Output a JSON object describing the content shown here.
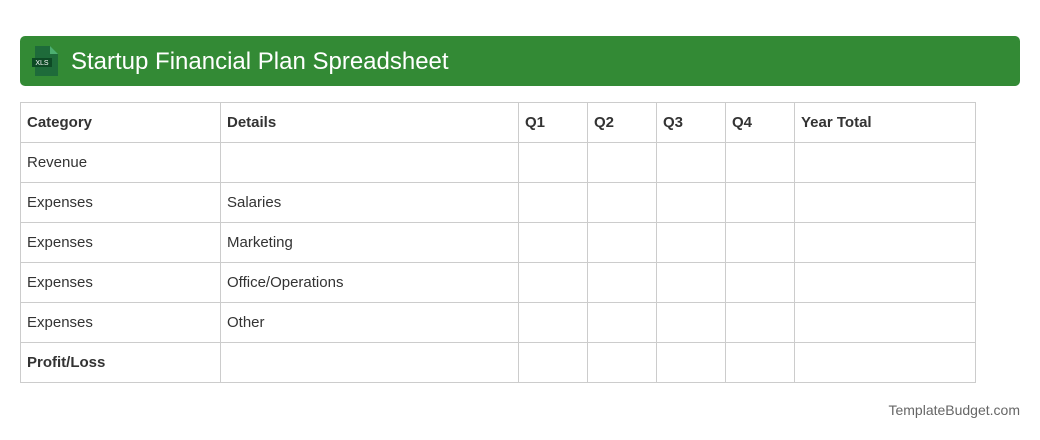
{
  "header": {
    "title": "Startup Financial Plan Spreadsheet",
    "icon": "xls-file-icon",
    "icon_text": "XLS",
    "color": "#338a35"
  },
  "table": {
    "columns": [
      "Category",
      "Details",
      "Q1",
      "Q2",
      "Q3",
      "Q4",
      "Year Total"
    ],
    "rows": [
      [
        "Revenue",
        ""
      ],
      [
        "Expenses",
        "Salaries"
      ],
      [
        "Expenses",
        "Marketing"
      ],
      [
        "Expenses",
        "Office/Operations"
      ],
      [
        "Expenses",
        "Other"
      ],
      [
        "Profit/Loss",
        ""
      ]
    ]
  },
  "footer": {
    "brand": "TemplateBudget.com"
  }
}
